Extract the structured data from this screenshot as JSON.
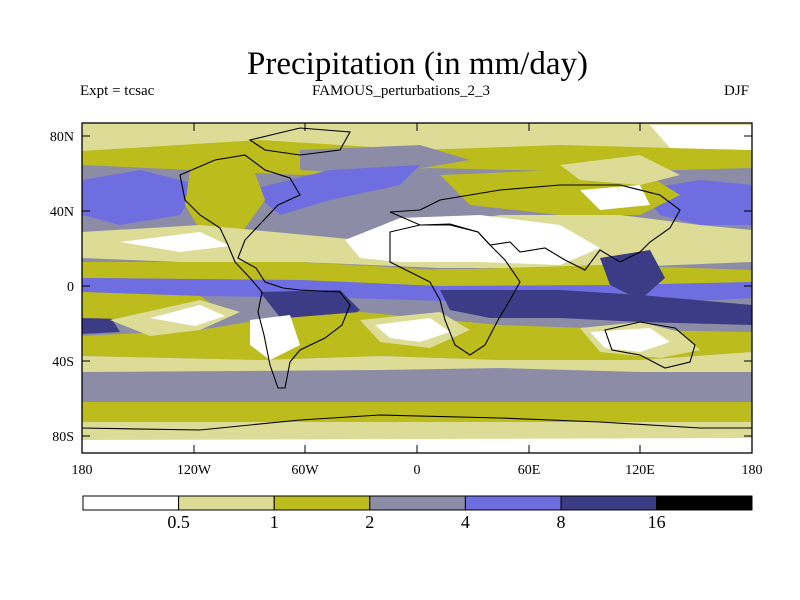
{
  "title": "Precipitation (in mm/day)",
  "experiment": "Expt = tcsac",
  "run": "FAMOUS_perturbations_2_3",
  "season": "DJF",
  "lat_ticks": [
    "80N",
    "40N",
    "0",
    "40S",
    "80S"
  ],
  "lon_ticks": [
    "180",
    "120W",
    "60W",
    "0",
    "60E",
    "120E",
    "180"
  ],
  "colorbar": {
    "colors": [
      "#ffffff",
      "#dcdc96",
      "#bcbc1c",
      "#8c8ca6",
      "#6e6ee0",
      "#3c3c86",
      "#000000"
    ],
    "labels": [
      "0.5",
      "1",
      "2",
      "4",
      "8",
      "16"
    ]
  },
  "legend_meaning": "< 0.5, 0.5-1, 1-2, 2-4, 4-8, 8-16, > 16 mm/day"
}
